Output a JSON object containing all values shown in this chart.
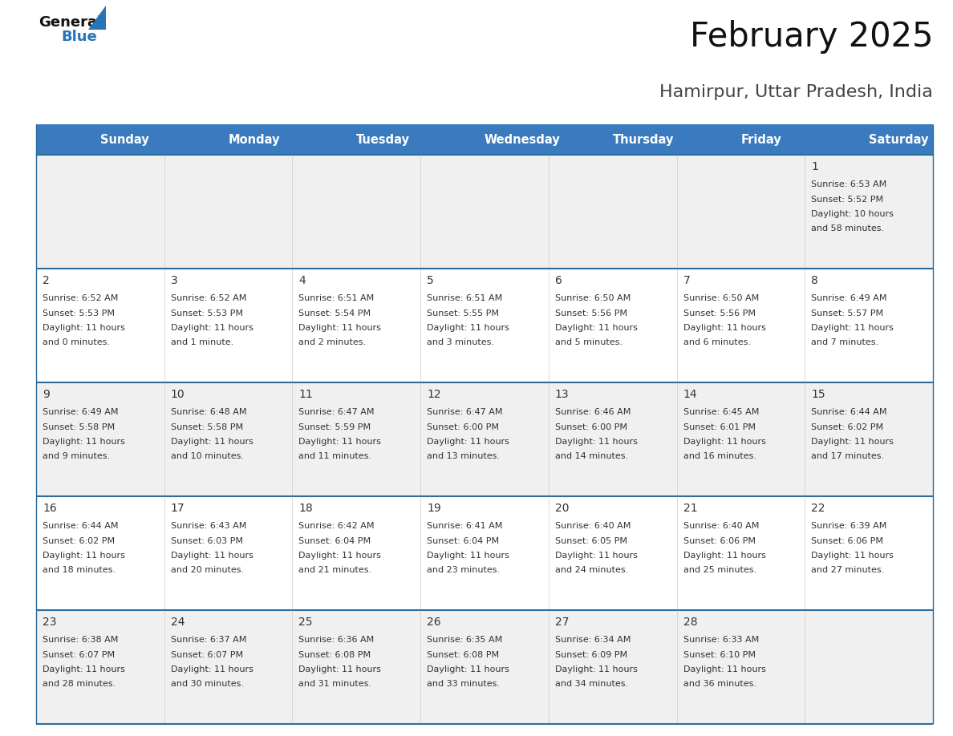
{
  "title": "February 2025",
  "subtitle": "Hamirpur, Uttar Pradesh, India",
  "header_color": "#3a7bbf",
  "header_text_color": "#ffffff",
  "day_names": [
    "Sunday",
    "Monday",
    "Tuesday",
    "Wednesday",
    "Thursday",
    "Friday",
    "Saturday"
  ],
  "bg_color": "#ffffff",
  "row_bg_even": "#f0f0f0",
  "row_bg_odd": "#ffffff",
  "cell_border_color": "#cccccc",
  "row_border_color": "#2a6ba0",
  "day_num_color": "#333333",
  "info_color": "#333333",
  "logo_general_color": "#111111",
  "logo_blue_color": "#2775b6",
  "days_data": [
    {
      "day": 1,
      "col": 6,
      "row": 0,
      "sunrise": "6:53 AM",
      "sunset": "5:52 PM",
      "dl_line1": "Daylight: 10 hours",
      "dl_line2": "and 58 minutes."
    },
    {
      "day": 2,
      "col": 0,
      "row": 1,
      "sunrise": "6:52 AM",
      "sunset": "5:53 PM",
      "dl_line1": "Daylight: 11 hours",
      "dl_line2": "and 0 minutes."
    },
    {
      "day": 3,
      "col": 1,
      "row": 1,
      "sunrise": "6:52 AM",
      "sunset": "5:53 PM",
      "dl_line1": "Daylight: 11 hours",
      "dl_line2": "and 1 minute."
    },
    {
      "day": 4,
      "col": 2,
      "row": 1,
      "sunrise": "6:51 AM",
      "sunset": "5:54 PM",
      "dl_line1": "Daylight: 11 hours",
      "dl_line2": "and 2 minutes."
    },
    {
      "day": 5,
      "col": 3,
      "row": 1,
      "sunrise": "6:51 AM",
      "sunset": "5:55 PM",
      "dl_line1": "Daylight: 11 hours",
      "dl_line2": "and 3 minutes."
    },
    {
      "day": 6,
      "col": 4,
      "row": 1,
      "sunrise": "6:50 AM",
      "sunset": "5:56 PM",
      "dl_line1": "Daylight: 11 hours",
      "dl_line2": "and 5 minutes."
    },
    {
      "day": 7,
      "col": 5,
      "row": 1,
      "sunrise": "6:50 AM",
      "sunset": "5:56 PM",
      "dl_line1": "Daylight: 11 hours",
      "dl_line2": "and 6 minutes."
    },
    {
      "day": 8,
      "col": 6,
      "row": 1,
      "sunrise": "6:49 AM",
      "sunset": "5:57 PM",
      "dl_line1": "Daylight: 11 hours",
      "dl_line2": "and 7 minutes."
    },
    {
      "day": 9,
      "col": 0,
      "row": 2,
      "sunrise": "6:49 AM",
      "sunset": "5:58 PM",
      "dl_line1": "Daylight: 11 hours",
      "dl_line2": "and 9 minutes."
    },
    {
      "day": 10,
      "col": 1,
      "row": 2,
      "sunrise": "6:48 AM",
      "sunset": "5:58 PM",
      "dl_line1": "Daylight: 11 hours",
      "dl_line2": "and 10 minutes."
    },
    {
      "day": 11,
      "col": 2,
      "row": 2,
      "sunrise": "6:47 AM",
      "sunset": "5:59 PM",
      "dl_line1": "Daylight: 11 hours",
      "dl_line2": "and 11 minutes."
    },
    {
      "day": 12,
      "col": 3,
      "row": 2,
      "sunrise": "6:47 AM",
      "sunset": "6:00 PM",
      "dl_line1": "Daylight: 11 hours",
      "dl_line2": "and 13 minutes."
    },
    {
      "day": 13,
      "col": 4,
      "row": 2,
      "sunrise": "6:46 AM",
      "sunset": "6:00 PM",
      "dl_line1": "Daylight: 11 hours",
      "dl_line2": "and 14 minutes."
    },
    {
      "day": 14,
      "col": 5,
      "row": 2,
      "sunrise": "6:45 AM",
      "sunset": "6:01 PM",
      "dl_line1": "Daylight: 11 hours",
      "dl_line2": "and 16 minutes."
    },
    {
      "day": 15,
      "col": 6,
      "row": 2,
      "sunrise": "6:44 AM",
      "sunset": "6:02 PM",
      "dl_line1": "Daylight: 11 hours",
      "dl_line2": "and 17 minutes."
    },
    {
      "day": 16,
      "col": 0,
      "row": 3,
      "sunrise": "6:44 AM",
      "sunset": "6:02 PM",
      "dl_line1": "Daylight: 11 hours",
      "dl_line2": "and 18 minutes."
    },
    {
      "day": 17,
      "col": 1,
      "row": 3,
      "sunrise": "6:43 AM",
      "sunset": "6:03 PM",
      "dl_line1": "Daylight: 11 hours",
      "dl_line2": "and 20 minutes."
    },
    {
      "day": 18,
      "col": 2,
      "row": 3,
      "sunrise": "6:42 AM",
      "sunset": "6:04 PM",
      "dl_line1": "Daylight: 11 hours",
      "dl_line2": "and 21 minutes."
    },
    {
      "day": 19,
      "col": 3,
      "row": 3,
      "sunrise": "6:41 AM",
      "sunset": "6:04 PM",
      "dl_line1": "Daylight: 11 hours",
      "dl_line2": "and 23 minutes."
    },
    {
      "day": 20,
      "col": 4,
      "row": 3,
      "sunrise": "6:40 AM",
      "sunset": "6:05 PM",
      "dl_line1": "Daylight: 11 hours",
      "dl_line2": "and 24 minutes."
    },
    {
      "day": 21,
      "col": 5,
      "row": 3,
      "sunrise": "6:40 AM",
      "sunset": "6:06 PM",
      "dl_line1": "Daylight: 11 hours",
      "dl_line2": "and 25 minutes."
    },
    {
      "day": 22,
      "col": 6,
      "row": 3,
      "sunrise": "6:39 AM",
      "sunset": "6:06 PM",
      "dl_line1": "Daylight: 11 hours",
      "dl_line2": "and 27 minutes."
    },
    {
      "day": 23,
      "col": 0,
      "row": 4,
      "sunrise": "6:38 AM",
      "sunset": "6:07 PM",
      "dl_line1": "Daylight: 11 hours",
      "dl_line2": "and 28 minutes."
    },
    {
      "day": 24,
      "col": 1,
      "row": 4,
      "sunrise": "6:37 AM",
      "sunset": "6:07 PM",
      "dl_line1": "Daylight: 11 hours",
      "dl_line2": "and 30 minutes."
    },
    {
      "day": 25,
      "col": 2,
      "row": 4,
      "sunrise": "6:36 AM",
      "sunset": "6:08 PM",
      "dl_line1": "Daylight: 11 hours",
      "dl_line2": "and 31 minutes."
    },
    {
      "day": 26,
      "col": 3,
      "row": 4,
      "sunrise": "6:35 AM",
      "sunset": "6:08 PM",
      "dl_line1": "Daylight: 11 hours",
      "dl_line2": "and 33 minutes."
    },
    {
      "day": 27,
      "col": 4,
      "row": 4,
      "sunrise": "6:34 AM",
      "sunset": "6:09 PM",
      "dl_line1": "Daylight: 11 hours",
      "dl_line2": "and 34 minutes."
    },
    {
      "day": 28,
      "col": 5,
      "row": 4,
      "sunrise": "6:33 AM",
      "sunset": "6:10 PM",
      "dl_line1": "Daylight: 11 hours",
      "dl_line2": "and 36 minutes."
    }
  ]
}
